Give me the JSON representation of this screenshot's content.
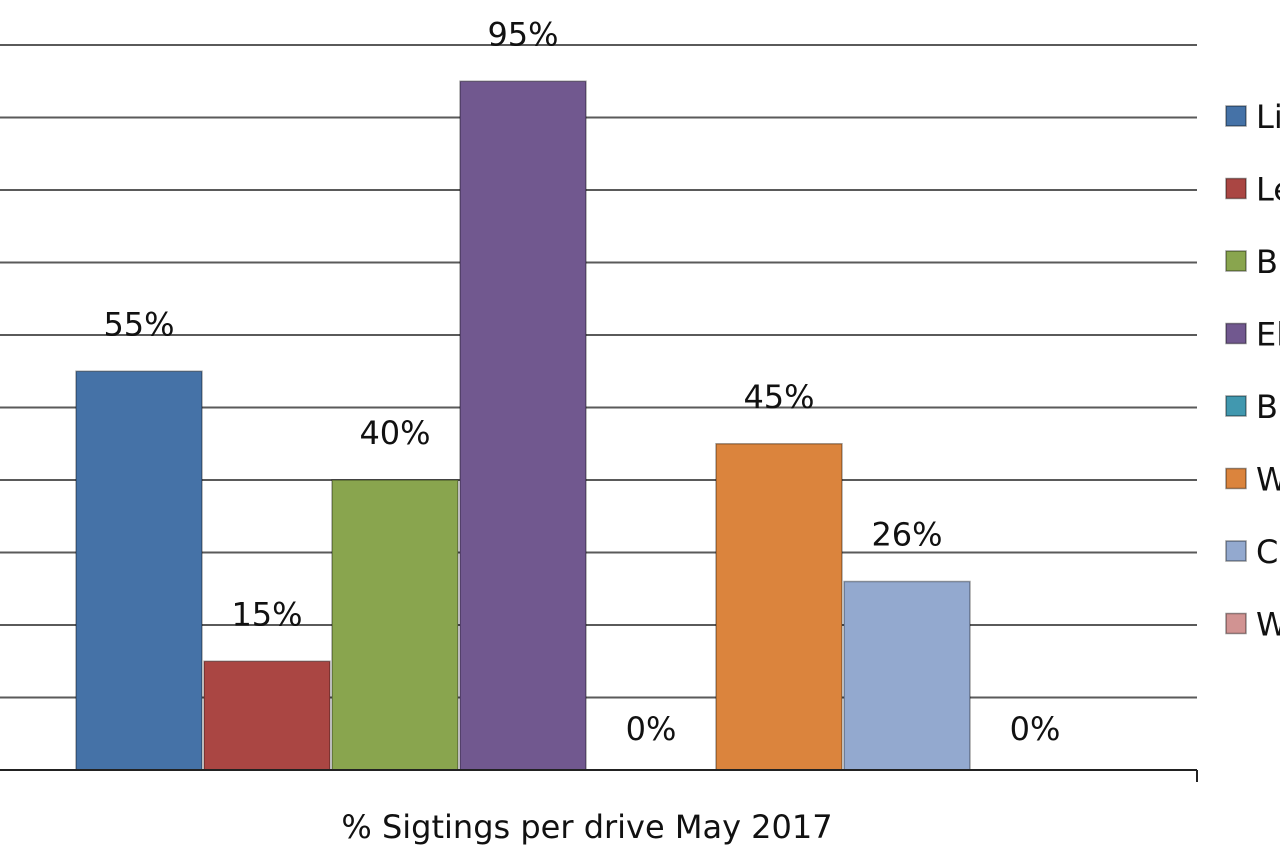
{
  "chart_data": {
    "type": "bar",
    "title": "",
    "xlabel": "% Sigtings per drive May 2017",
    "ylabel": "",
    "ylim": [
      0,
      100
    ],
    "grid": true,
    "legend_position": "right",
    "categories": [
      "% Sigtings per drive May 2017"
    ],
    "series": [
      {
        "name": "Li",
        "values": [
          55
        ],
        "label": "55%",
        "color": "#4572a7"
      },
      {
        "name": "Le",
        "values": [
          15
        ],
        "label": "15%",
        "color": "#aa4643"
      },
      {
        "name": "B",
        "values": [
          40
        ],
        "label": "40%",
        "color": "#89a54e"
      },
      {
        "name": "El",
        "values": [
          95
        ],
        "label": "95%",
        "color": "#71588f"
      },
      {
        "name": "B",
        "values": [
          0
        ],
        "label": "0%",
        "color": "#4198af"
      },
      {
        "name": "W",
        "values": [
          45
        ],
        "label": "45%",
        "color": "#db843d"
      },
      {
        "name": "C",
        "values": [
          26
        ],
        "label": "26%",
        "color": "#93a9cf"
      },
      {
        "name": "W",
        "values": [
          0
        ],
        "label": "0%",
        "color": "#d19392"
      }
    ]
  }
}
